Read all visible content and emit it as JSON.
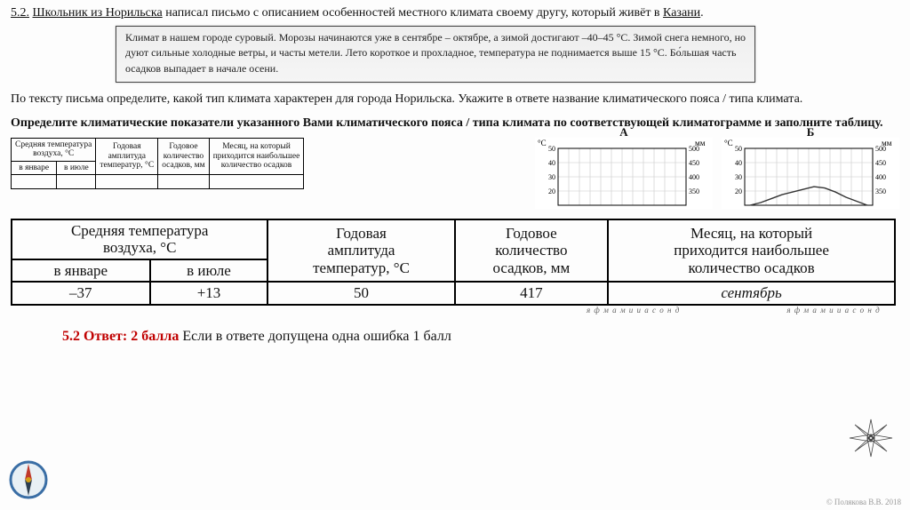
{
  "task": {
    "number": "5.2.",
    "intro_1": "Школьник из Норильска",
    "intro_2": " написал письмо с описанием особенностей местного климата своему другу, который живёт в ",
    "city2": "Казани",
    "period": "."
  },
  "letter": {
    "text": "Климат в нашем городе суровый. Морозы начинаются уже в сентябре – октябре, а зимой достигают –40–45 °С. Зимой снега немного, но дуют сильные холодные ветры, и часты метели. Лето короткое и прохладное, температура не поднимается выше 15 °С. Бо́льшая часть осадков выпадает в начале осени."
  },
  "q1_a": "По тексту письма определите, какой тип климата характерен для города Норильска. Укажите в ответе название климатического пояса / типа климата.",
  "q1_b": "Определите климатические показатели указанного Вами климатического пояса / типа климата по соответствующей климатограмме и заполните таблицу.",
  "small_table": {
    "h1a": "Средняя температура",
    "h1b": "воздуха, °С",
    "h2": "в январе",
    "h3": "в июле",
    "h4a": "Годовая",
    "h4b": "амплитуда",
    "h4c": "температур, °С",
    "h5a": "Годовое",
    "h5b": "количество",
    "h5c": "осадков, мм",
    "h6a": "Месяц, на который",
    "h6b": "приходится наибольшее",
    "h6c": "количество осадков"
  },
  "big_table": {
    "h1a": "Средняя температура",
    "h1b": "воздуха, °С",
    "h2": "в январе",
    "h3": "в июле",
    "h4a": "Годовая",
    "h4b": "амплитуда",
    "h4c": "температур, °С",
    "h5a": "Годовое",
    "h5b": "количество",
    "h5c": "осадков, мм",
    "h6a": "Месяц, на который",
    "h6b": "приходится наибольшее",
    "h6c": "количество осадков",
    "v1": "–37",
    "v2": "+13",
    "v3": "50",
    "v4": "417",
    "v5": "сентябрь"
  },
  "charts": {
    "labelA": "А",
    "labelB": "Б",
    "y_left_unit": "°С",
    "y_right_unit": "мм",
    "left_ticks": [
      "50",
      "40",
      "30",
      "20"
    ],
    "right_ticks": [
      "500",
      "450",
      "400",
      "350"
    ],
    "grid_color": "#c8c8c8",
    "axis_color": "#000",
    "curveB_color": "#333",
    "curveB": [
      0,
      2,
      5,
      8,
      10,
      12,
      14,
      13,
      10,
      6,
      3,
      0
    ],
    "months_note": "я ф м а м и и а с о н д"
  },
  "answer": {
    "prefix": "5.2 Ответ: 2 балла",
    "rest": " Если в ответе допущена одна ошибка 1 балл"
  },
  "copyright": "© Полякова В.В. 2018",
  "colors": {
    "letter_bg": "#efefef",
    "red": "#c00000"
  }
}
